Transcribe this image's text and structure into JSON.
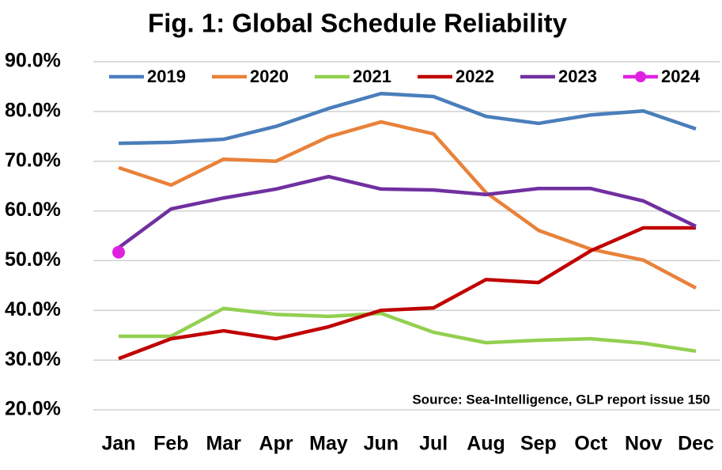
{
  "chart_data": {
    "type": "line",
    "title": "Fig. 1: Global Schedule Reliability",
    "categories": [
      "Jan",
      "Feb",
      "Mar",
      "Apr",
      "May",
      "Jun",
      "Jul",
      "Aug",
      "Sep",
      "Oct",
      "Nov",
      "Dec"
    ],
    "series": [
      {
        "name": "2019",
        "color": "#4a7ebb",
        "values": [
          73.6,
          73.8,
          74.4,
          77.0,
          80.6,
          83.6,
          83.0,
          79.0,
          77.6,
          79.3,
          80.1,
          76.5
        ]
      },
      {
        "name": "2020",
        "color": "#e8823a",
        "values": [
          68.7,
          65.2,
          70.4,
          70.0,
          74.9,
          77.9,
          75.5,
          63.7,
          56.1,
          52.3,
          50.1,
          44.5
        ]
      },
      {
        "name": "2021",
        "color": "#92d050",
        "values": [
          34.8,
          34.8,
          40.4,
          39.2,
          38.8,
          39.4,
          35.6,
          33.5,
          34.0,
          34.3,
          33.4,
          31.8
        ]
      },
      {
        "name": "2022",
        "color": "#c00000",
        "values": [
          30.3,
          34.3,
          35.9,
          34.3,
          36.7,
          40.0,
          40.5,
          46.2,
          45.6,
          52.0,
          56.6,
          56.6
        ]
      },
      {
        "name": "2023",
        "color": "#7030a0",
        "values": [
          52.6,
          60.4,
          62.6,
          64.4,
          66.9,
          64.4,
          64.2,
          63.3,
          64.5,
          64.5,
          62.0,
          56.9
        ]
      },
      {
        "name": "2024",
        "color": "#e020e0",
        "marker": true,
        "values": [
          51.7,
          null,
          null,
          null,
          null,
          null,
          null,
          null,
          null,
          null,
          null,
          null
        ]
      }
    ],
    "ylim": [
      20,
      90
    ],
    "yticks": [
      {
        "value": 20,
        "label": "20.0%"
      },
      {
        "value": 30,
        "label": "30.0%"
      },
      {
        "value": 40,
        "label": "40.0%"
      },
      {
        "value": 50,
        "label": "50.0%"
      },
      {
        "value": 60,
        "label": "60.0%"
      },
      {
        "value": 70,
        "label": "70.0%"
      },
      {
        "value": 80,
        "label": "80.0%"
      },
      {
        "value": 90,
        "label": "90.0%"
      }
    ],
    "grid": true,
    "legend": "top",
    "annotation": "Source: Sea-Intelligence, GLP report issue 150"
  }
}
